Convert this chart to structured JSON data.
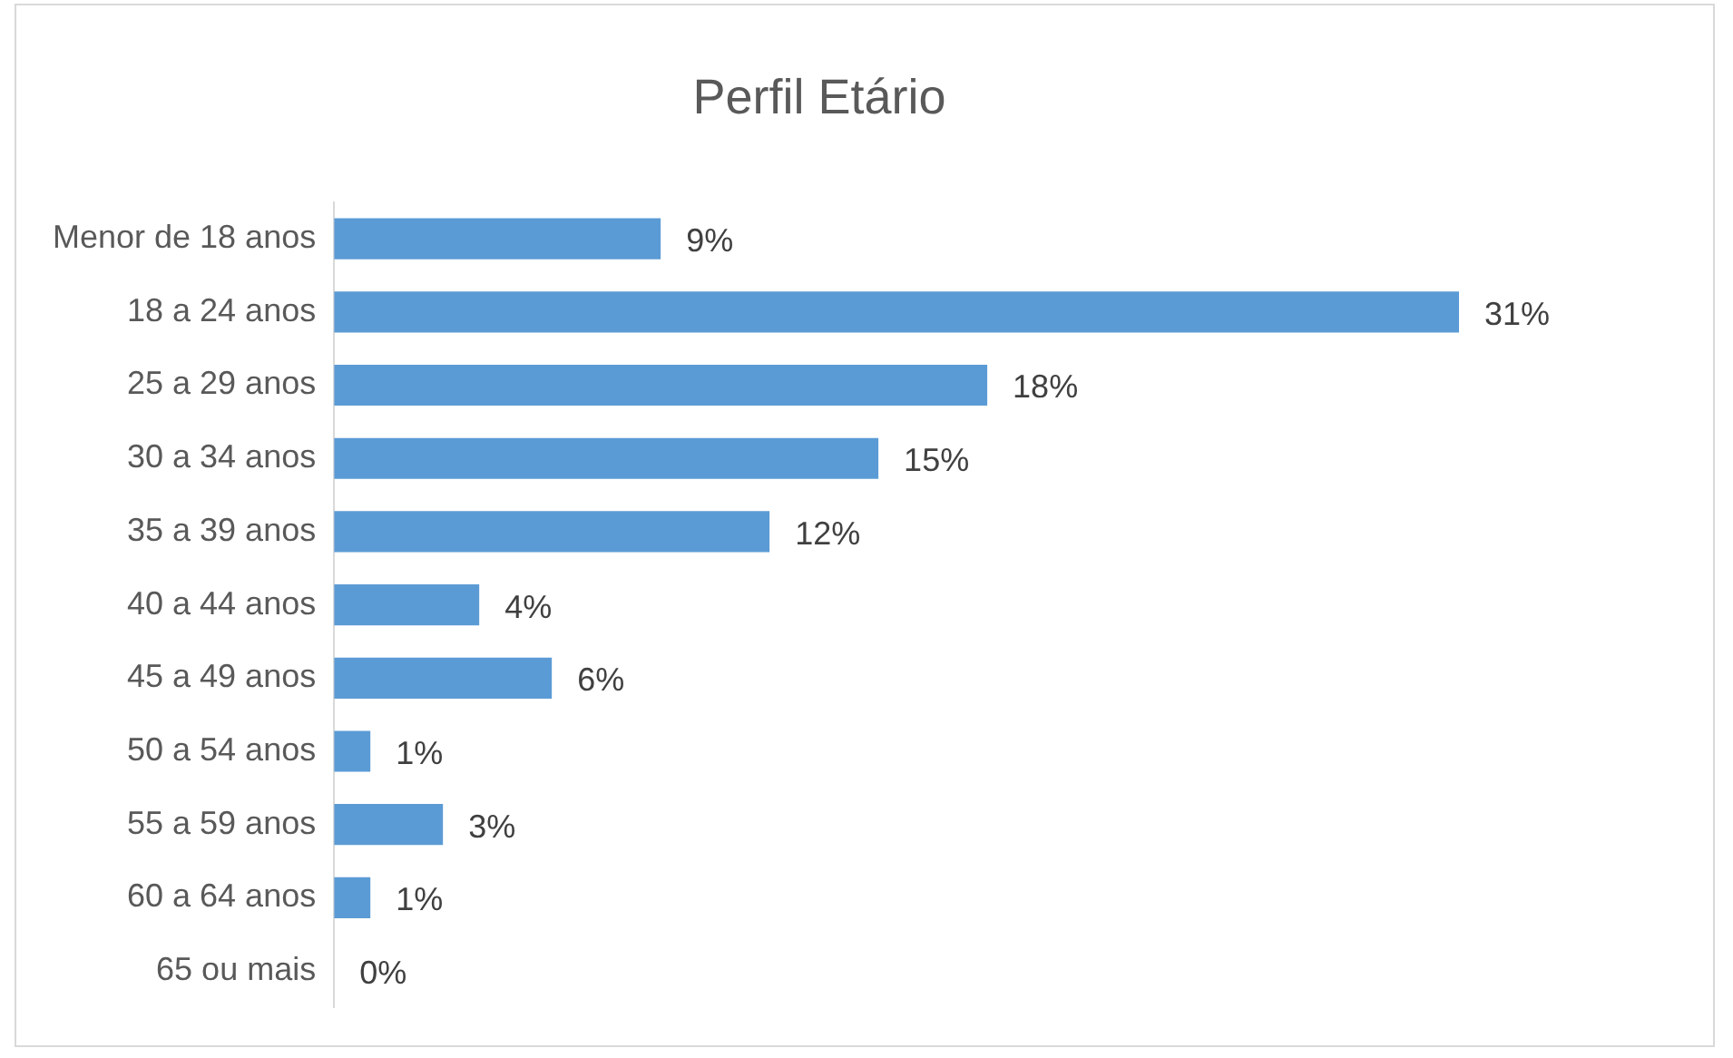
{
  "chart_data": {
    "type": "bar",
    "orientation": "horizontal",
    "title": "Perfil Etário",
    "categories": [
      "Menor de 18 anos",
      "18 a 24 anos",
      "25 a 29 anos",
      "30 a 34 anos",
      "35 a 39 anos",
      "40 a 44 anos",
      "45 a 49 anos",
      "50 a 54 anos",
      "55 a 59 anos",
      "60 a 64 anos",
      "65 ou mais"
    ],
    "values": [
      9,
      31,
      18,
      15,
      12,
      4,
      6,
      1,
      3,
      1,
      0
    ],
    "value_labels": [
      "9%",
      "31%",
      "18%",
      "15%",
      "12%",
      "4%",
      "6%",
      "1%",
      "3%",
      "1%",
      "0%"
    ],
    "color": "#5b9bd5",
    "grid": false,
    "legend": false
  }
}
